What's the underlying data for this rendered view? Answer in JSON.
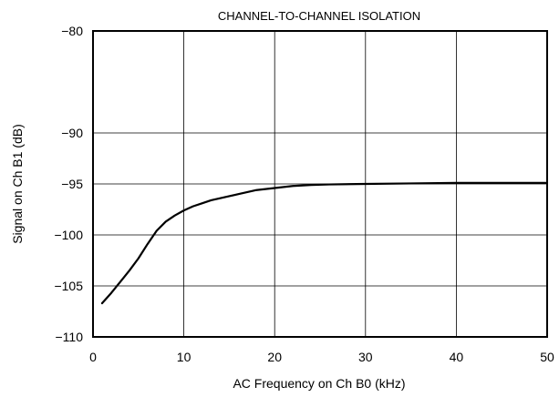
{
  "chart_data": {
    "type": "line",
    "title": "CHANNEL-TO-CHANNEL ISOLATION",
    "xlabel": "AC Frequency on Ch B0 (kHz)",
    "ylabel": "Signal on Ch B1 (dB)",
    "xlim": [
      0,
      50
    ],
    "ylim": [
      -110,
      -80
    ],
    "xticks": [
      0,
      10,
      20,
      30,
      40,
      50
    ],
    "yticks": [
      -80,
      -90,
      -95,
      -100,
      -105,
      -110
    ],
    "xtick_labels": [
      "0",
      "10",
      "20",
      "30",
      "40",
      "50"
    ],
    "ytick_labels": [
      "−80",
      "−90",
      "−95",
      "−100",
      "−105",
      "−110"
    ],
    "grid": true,
    "series": [
      {
        "color": "#000000",
        "x": [
          1,
          2,
          3,
          4,
          5,
          6,
          7,
          8,
          9,
          10,
          11,
          12,
          13,
          14,
          15,
          16,
          18,
          20,
          22,
          24,
          26,
          30,
          35,
          40,
          45,
          50
        ],
        "y": [
          -106.7,
          -105.7,
          -104.6,
          -103.5,
          -102.3,
          -100.9,
          -99.6,
          -98.7,
          -98.1,
          -97.6,
          -97.2,
          -96.9,
          -96.6,
          -96.4,
          -96.2,
          -96.0,
          -95.6,
          -95.4,
          -95.2,
          -95.1,
          -95.05,
          -95.0,
          -94.95,
          -94.9,
          -94.9,
          -94.9
        ]
      }
    ]
  }
}
